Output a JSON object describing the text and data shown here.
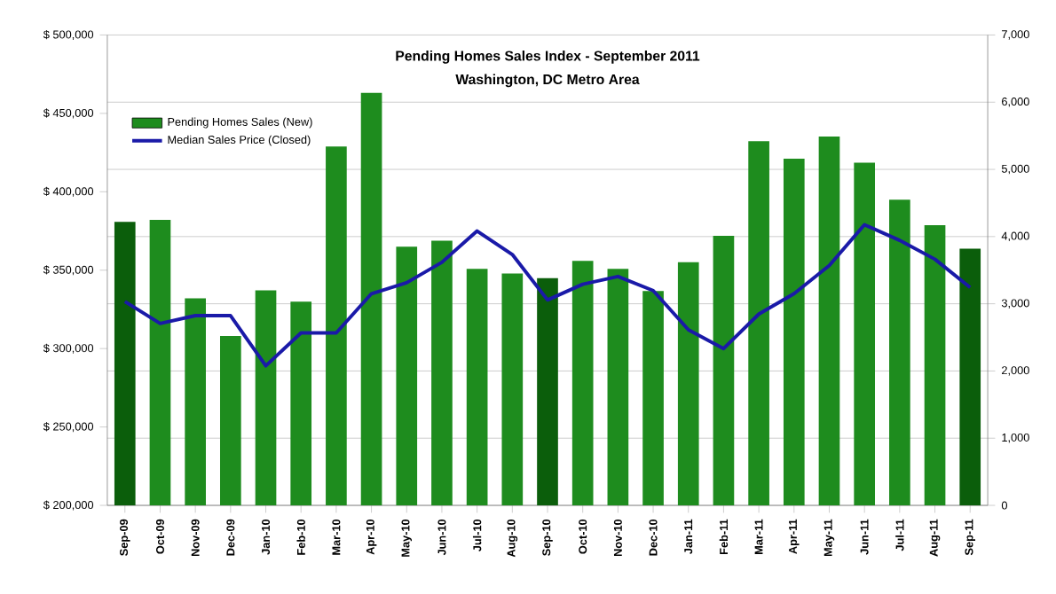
{
  "chart_data": {
    "type": "bar",
    "title": "Pending Homes Sales Index  - September 2011",
    "subtitle": "Washington, DC Metro Area",
    "categories": [
      "Sep-09",
      "Oct-09",
      "Nov-09",
      "Dec-09",
      "Jan-10",
      "Feb-10",
      "Mar-10",
      "Apr-10",
      "May-10",
      "Jun-10",
      "Jul-10",
      "Aug-10",
      "Sep-10",
      "Oct-10",
      "Nov-10",
      "Dec-10",
      "Jan-11",
      "Feb-11",
      "Mar-11",
      "Apr-11",
      "May-11",
      "Jun-11",
      "Jul-11",
      "Aug-11",
      "Sep-11"
    ],
    "series": [
      {
        "name": "Pending Homes Sales (New)",
        "axis": "y2",
        "color": "#1e8c1e",
        "colors": [
          "#0b5e0b",
          "#1e8c1e",
          "#1e8c1e",
          "#1e8c1e",
          "#1e8c1e",
          "#1e8c1e",
          "#1e8c1e",
          "#1e8c1e",
          "#1e8c1e",
          "#1e8c1e",
          "#1e8c1e",
          "#1e8c1e",
          "#0b5e0b",
          "#1e8c1e",
          "#1e8c1e",
          "#1e8c1e",
          "#1e8c1e",
          "#1e8c1e",
          "#1e8c1e",
          "#1e8c1e",
          "#1e8c1e",
          "#1e8c1e",
          "#1e8c1e",
          "#1e8c1e",
          "#0b5e0b"
        ],
        "values": [
          4220,
          4250,
          3080,
          2520,
          3200,
          3030,
          5340,
          6140,
          3850,
          3940,
          3520,
          3450,
          3380,
          3640,
          3520,
          3190,
          3620,
          4010,
          5420,
          5160,
          5490,
          5100,
          4550,
          4170,
          3820
        ]
      },
      {
        "name": "Median Sales Price (Closed)",
        "type": "line",
        "color": "#1a1aa8",
        "values": [
          330000,
          316000,
          321000,
          321000,
          289000,
          310000,
          310000,
          335000,
          342000,
          355000,
          375000,
          360000,
          331000,
          341000,
          346000,
          337000,
          312000,
          300000,
          322000,
          335000,
          353000,
          379000,
          369000,
          357000,
          339000
        ]
      }
    ],
    "ylim": [
      200000,
      500000
    ],
    "yticks": [
      {
        "value": 200000,
        "label": "$ 200,000"
      },
      {
        "value": 250000,
        "label": "$ 250,000"
      },
      {
        "value": 300000,
        "label": "$ 300,000"
      },
      {
        "value": 350000,
        "label": "$ 350,000"
      },
      {
        "value": 400000,
        "label": "$ 400,000"
      },
      {
        "value": 450000,
        "label": "$ 450,000"
      },
      {
        "value": 500000,
        "label": "$ 500,000"
      }
    ],
    "y2lim": [
      0,
      7000
    ],
    "y2ticks": [
      0,
      {
        "value": 1000,
        "label": "1,000"
      },
      {
        "value": 2000,
        "label": "2,000"
      },
      {
        "value": 3000,
        "label": "3,000"
      },
      {
        "value": 4000,
        "label": "4,000"
      },
      {
        "value": 5000,
        "label": "5,000"
      },
      {
        "value": 6000,
        "label": "6,000"
      },
      {
        "value": 7000,
        "label": "7,000"
      }
    ],
    "grid": "y",
    "legend": "top left",
    "marker": "none",
    "line_style": "solid"
  }
}
